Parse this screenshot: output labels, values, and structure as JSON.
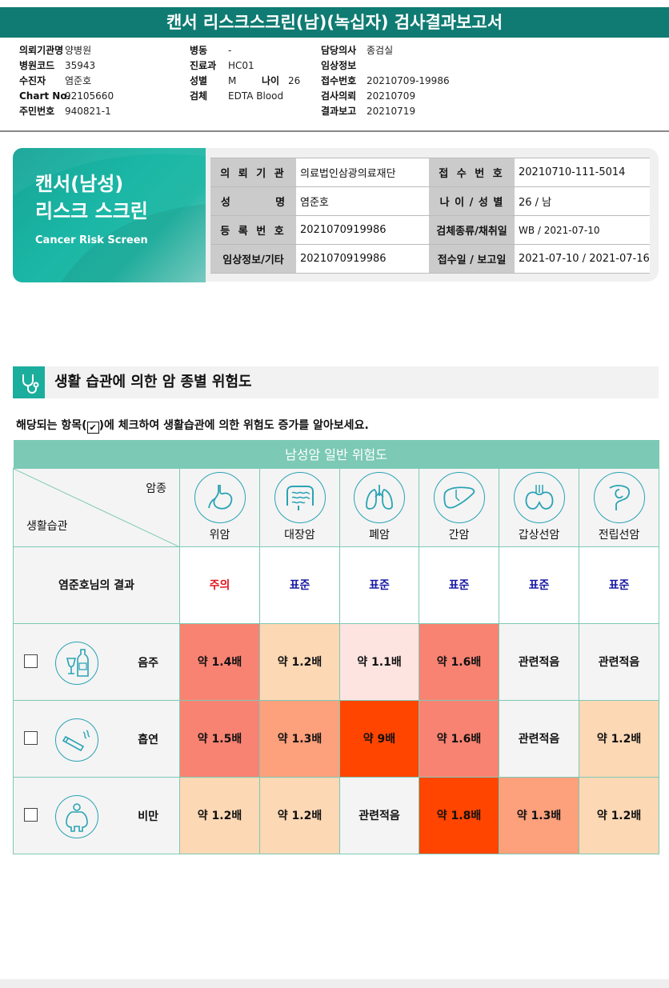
{
  "report_title": "캔서 리스크스크린(남)(녹십자) 검사결과보고서",
  "meta_left": [
    {
      "key": "의뢰기관명",
      "value": "양병원"
    },
    {
      "key": "병원코드",
      "value": "35943"
    },
    {
      "key": "수진자",
      "value": "염준호"
    },
    {
      "key": "Chart No.",
      "value": "92105660"
    },
    {
      "key": "주민번호",
      "value": "940821-1"
    }
  ],
  "meta_mid": [
    {
      "key": "병동",
      "value": "-"
    },
    {
      "key": "진료과",
      "value": "HC01"
    },
    {
      "key": "성별",
      "value": "M"
    },
    {
      "key": "검체",
      "value": "EDTA Blood"
    }
  ],
  "meta_age": {
    "key": "나이",
    "value": "26"
  },
  "meta_right": [
    {
      "key": "담당의사",
      "value": "종검실"
    },
    {
      "key": "임상정보",
      "value": ""
    },
    {
      "key": "접수번호",
      "value": "20210709-19986"
    },
    {
      "key": "검사의뢰",
      "value": "20210709"
    },
    {
      "key": "결과보고",
      "value": "20210719"
    }
  ],
  "banner": {
    "line1": "캔서(남성)",
    "line2": "리스크 스크린",
    "subtitle": "Cancer Risk Screen"
  },
  "info": {
    "inst_k": "의 뢰 기 관",
    "inst_v": "의료법인삼광의료재단",
    "recv_k": "접 수 번 호",
    "recv_v": "20210710-111-5014",
    "name_k": "성          명",
    "name_v": "염준호",
    "agesex_k": "나 이 / 성 별",
    "agesex_v": "26 / 남",
    "reg_k": "등 록 번 호",
    "reg_v": "2021070919986",
    "spec_k": "검체종류/채취일",
    "spec_v": "WB / 2021-07-10",
    "clin_k": "임상정보/기타",
    "clin_v": "2021070919986",
    "date_k": "접수일 / 보고일",
    "date_v": "2021-07-10 / 2021-07-16"
  },
  "section_title": "생활 습관에 의한 암 종별 위험도",
  "instruction_before": "해당되는 항목(",
  "instruction_check": "✔",
  "instruction_after": ")에 체크하여 생활습관에 의한 위험도 증가를 알아보세요.",
  "table": {
    "caption": "남성암 일반 위험도",
    "corner_top": "암종",
    "corner_bottom": "생활습관",
    "cancers": [
      {
        "name": "위암",
        "icon": "stomach-icon"
      },
      {
        "name": "대장암",
        "icon": "colon-icon"
      },
      {
        "name": "폐암",
        "icon": "lungs-icon"
      },
      {
        "name": "간암",
        "icon": "liver-icon"
      },
      {
        "name": "갑상선암",
        "icon": "thyroid-icon"
      },
      {
        "name": "전립선암",
        "icon": "prostate-icon"
      }
    ],
    "result_label": "염준호님의 결과",
    "results": [
      {
        "text": "주의",
        "color": "#e0141e"
      },
      {
        "text": "표준",
        "color": "#1a1aa6"
      },
      {
        "text": "표준",
        "color": "#1a1aa6"
      },
      {
        "text": "표준",
        "color": "#1a1aa6"
      },
      {
        "text": "표준",
        "color": "#1a1aa6"
      },
      {
        "text": "표준",
        "color": "#1a1aa6"
      }
    ],
    "habits": [
      {
        "label": "음주",
        "icon": "alcohol-icon",
        "cells": [
          {
            "text": "약 1.4배",
            "bg": "#f98372"
          },
          {
            "text": "약 1.2배",
            "bg": "#fdd8b5"
          },
          {
            "text": "약 1.1배",
            "bg": "#fde4e1"
          },
          {
            "text": "약 1.6배",
            "bg": "#f98372"
          },
          {
            "text": "관련적음",
            "bg": "#f4f4f4"
          },
          {
            "text": "관련적음",
            "bg": "#f4f4f4"
          }
        ]
      },
      {
        "label": "흡연",
        "icon": "smoking-icon",
        "cells": [
          {
            "text": "약 1.5배",
            "bg": "#f98372"
          },
          {
            "text": "약 1.3배",
            "bg": "#fda07c"
          },
          {
            "text": "약 9배",
            "bg": "#ff4500"
          },
          {
            "text": "약 1.6배",
            "bg": "#f98372"
          },
          {
            "text": "관련적음",
            "bg": "#f4f4f4"
          },
          {
            "text": "약 1.2배",
            "bg": "#fdd8b5"
          }
        ]
      },
      {
        "label": "비만",
        "icon": "obesity-icon",
        "cells": [
          {
            "text": "약 1.2배",
            "bg": "#fdd8b5"
          },
          {
            "text": "약 1.2배",
            "bg": "#fdd8b5"
          },
          {
            "text": "관련적음",
            "bg": "#f4f4f4"
          },
          {
            "text": "약 1.8배",
            "bg": "#ff4500"
          },
          {
            "text": "약 1.3배",
            "bg": "#fda07c"
          },
          {
            "text": "약 1.2배",
            "bg": "#fdd8b5"
          }
        ]
      }
    ]
  }
}
